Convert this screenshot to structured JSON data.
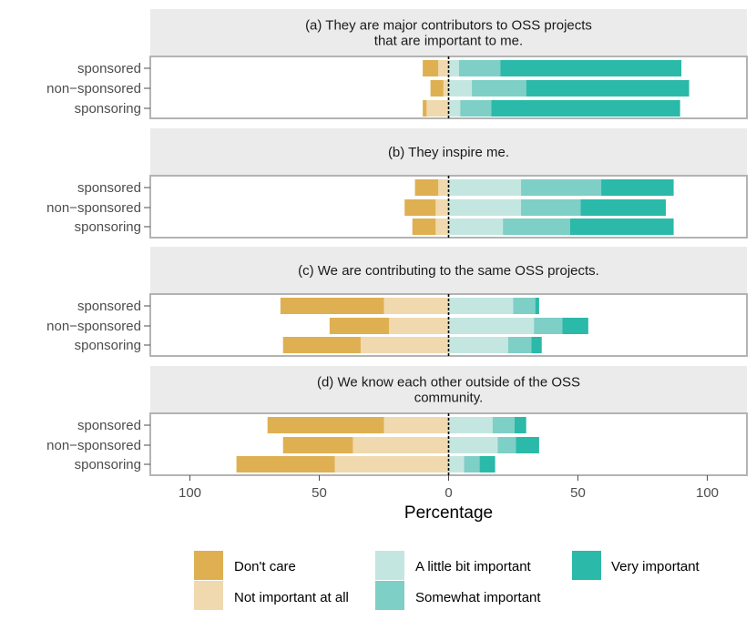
{
  "chart_data": {
    "type": "bar",
    "subtype": "diverging-stacked-horizontal",
    "xlabel": "Percentage",
    "xlim": [
      -115,
      115
    ],
    "xticks": [
      {
        "value": -100,
        "label": "100"
      },
      {
        "value": -50,
        "label": "50"
      },
      {
        "value": 0,
        "label": "0"
      },
      {
        "value": 50,
        "label": "50"
      },
      {
        "value": 100,
        "label": "100"
      }
    ],
    "categories": [
      "sponsored",
      "non−sponsored",
      "sponsoring"
    ],
    "series": [
      {
        "key": "dont_care",
        "name": "Don't care",
        "color": "#DEB052",
        "side": "negative"
      },
      {
        "key": "not_important",
        "name": "Not important at all",
        "color": "#F0D9AE",
        "side": "negative"
      },
      {
        "key": "little_important",
        "name": "A little bit important",
        "color": "#C4E6E1",
        "side": "positive"
      },
      {
        "key": "somewhat_important",
        "name": "Somewhat important",
        "color": "#7ECFC6",
        "side": "positive"
      },
      {
        "key": "very_important",
        "name": "Very important",
        "color": "#2BB9A9",
        "side": "positive"
      }
    ],
    "panels": [
      {
        "id": "a",
        "title": [
          "(a) They are major contributors to OSS projects",
          "that are important to me."
        ],
        "rows": [
          {
            "dont_care": 6,
            "not_important": 4,
            "little_important": 4,
            "somewhat_important": 16,
            "very_important": 70
          },
          {
            "dont_care": 5,
            "not_important": 2,
            "little_important": 9,
            "somewhat_important": 21,
            "very_important": 63
          },
          {
            "dont_care": 1.5,
            "not_important": 8.5,
            "little_important": 4.5,
            "somewhat_important": 12,
            "very_important": 73
          }
        ]
      },
      {
        "id": "b",
        "title": [
          "(b) They inspire me."
        ],
        "rows": [
          {
            "dont_care": 9,
            "not_important": 4,
            "little_important": 28,
            "somewhat_important": 31,
            "very_important": 28
          },
          {
            "dont_care": 12,
            "not_important": 5,
            "little_important": 28,
            "somewhat_important": 23,
            "very_important": 33
          },
          {
            "dont_care": 9,
            "not_important": 5,
            "little_important": 21,
            "somewhat_important": 26,
            "very_important": 40
          }
        ]
      },
      {
        "id": "c",
        "title": [
          "(c) We are contributing to the same OSS projects."
        ],
        "rows": [
          {
            "dont_care": 40,
            "not_important": 25,
            "little_important": 25,
            "somewhat_important": 8.5,
            "very_important": 1.5
          },
          {
            "dont_care": 23,
            "not_important": 23,
            "little_important": 33,
            "somewhat_important": 11,
            "very_important": 10
          },
          {
            "dont_care": 30,
            "not_important": 34,
            "little_important": 23,
            "somewhat_important": 9,
            "very_important": 4
          }
        ]
      },
      {
        "id": "d",
        "title": [
          "(d) We know each other outside of the OSS",
          "community."
        ],
        "rows": [
          {
            "dont_care": 45,
            "not_important": 25,
            "little_important": 17,
            "somewhat_important": 8.5,
            "very_important": 4.5
          },
          {
            "dont_care": 27,
            "not_important": 37,
            "little_important": 19,
            "somewhat_important": 7,
            "very_important": 9
          },
          {
            "dont_care": 38,
            "not_important": 44,
            "little_important": 6,
            "somewhat_important": 6,
            "very_important": 6
          }
        ]
      }
    ],
    "legend": {
      "placement": "bottom",
      "items": [
        "Don't care",
        "Not important at all",
        "A little bit important",
        "Somewhat important",
        "Very important"
      ]
    }
  }
}
